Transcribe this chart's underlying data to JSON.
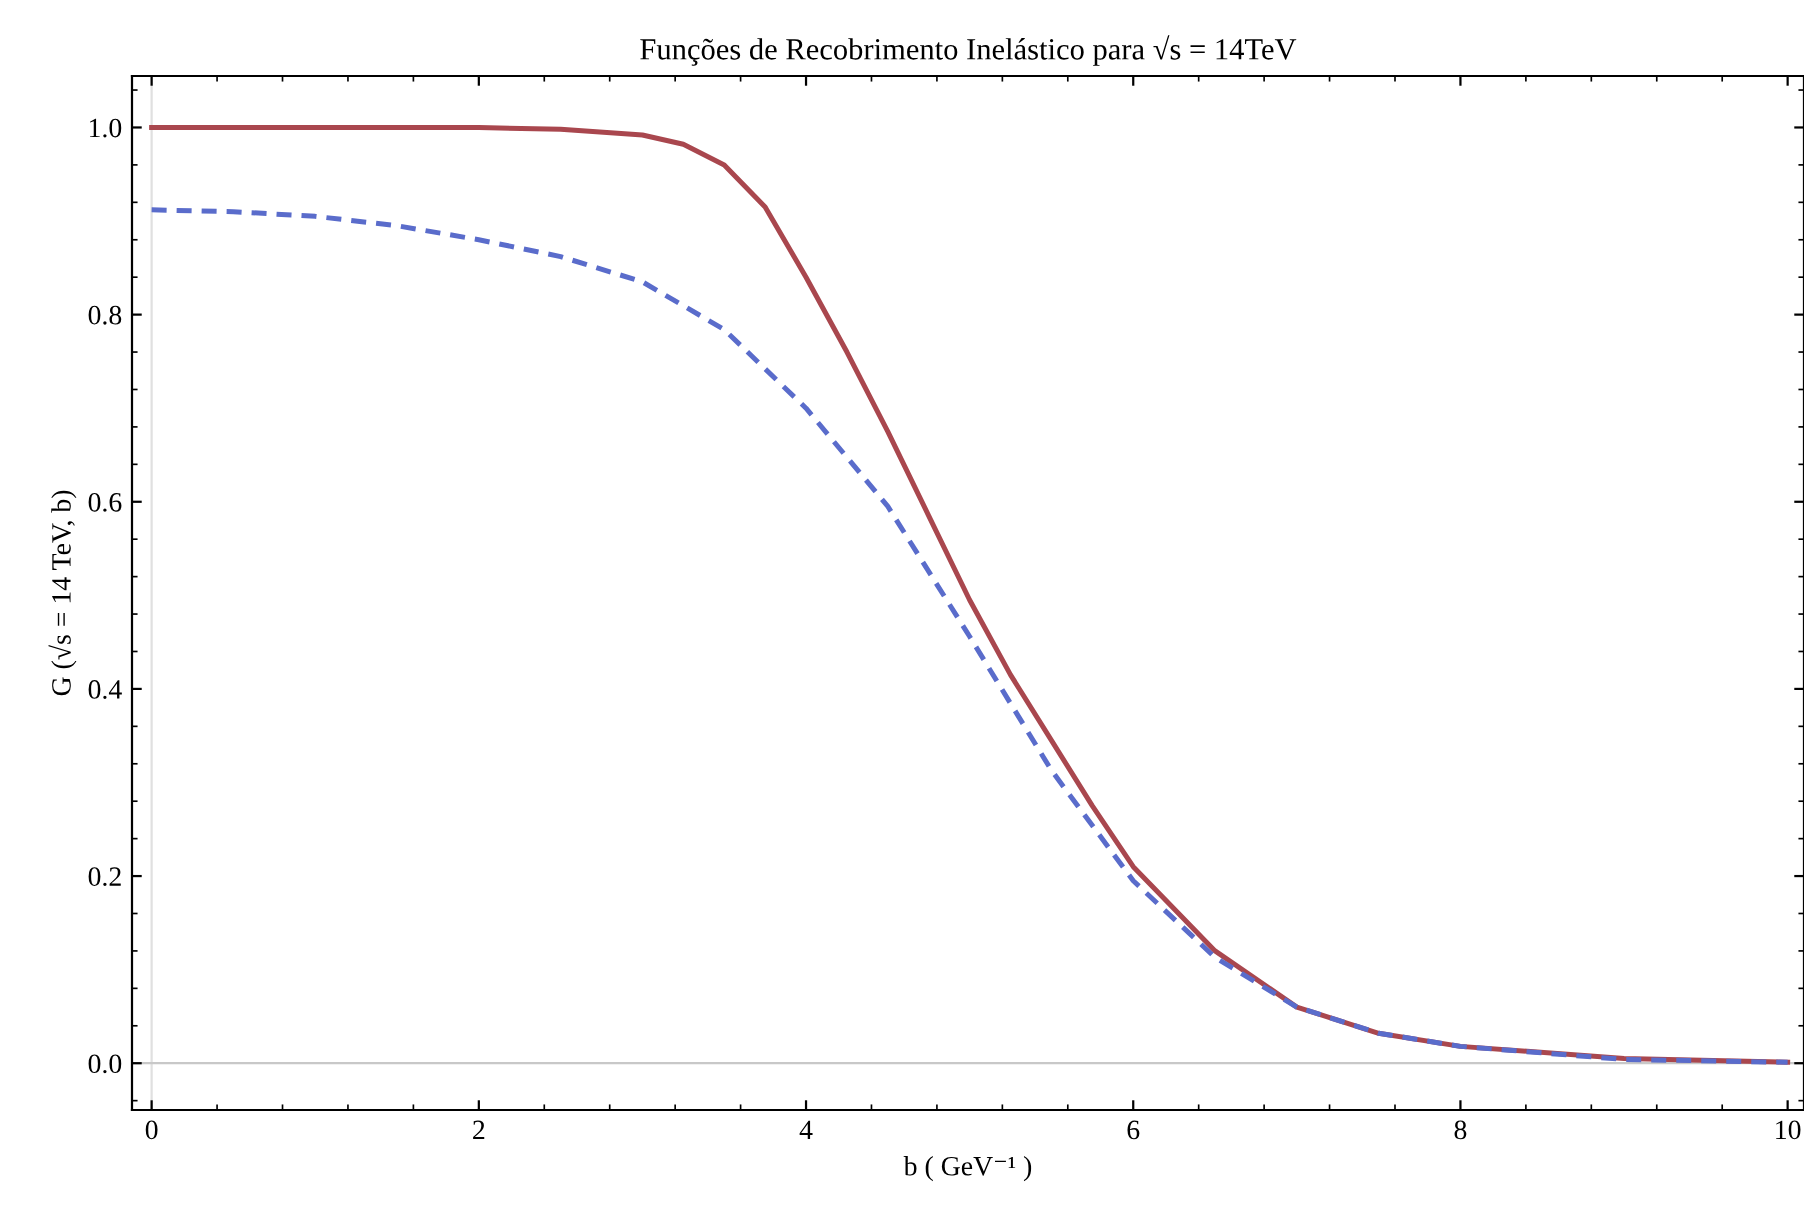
{
  "chart_data": {
    "type": "line",
    "title": "Funções de Recobrimento Inelástico para √s = 14TeV",
    "xlabel": "b ( GeV⁻¹ )",
    "ylabel": "G (√s = 14 TeV, b)",
    "xlim": [
      -0.12,
      10.1
    ],
    "ylim": [
      -0.05,
      1.055
    ],
    "xticks": [
      0,
      2,
      4,
      6,
      8,
      10
    ],
    "yticks": [
      {
        "value": 0,
        "label": "0.0"
      },
      {
        "value": 0.2,
        "label": "0.2"
      },
      {
        "value": 0.4,
        "label": "0.4"
      },
      {
        "value": 0.6,
        "label": "0.6"
      },
      {
        "value": 0.8,
        "label": "0.8"
      },
      {
        "value": 1,
        "label": "1.0"
      }
    ],
    "grid": false,
    "legend": false,
    "ref_lines": [
      {
        "axis": "x",
        "value": 0,
        "color": "#e0e0e0"
      },
      {
        "axis": "y",
        "value": 0,
        "color": "#c8c8c8"
      }
    ],
    "series": [
      {
        "color": "#a9474e",
        "line_style": "solid",
        "x": [
          0,
          1,
          2,
          2.5,
          3,
          3.25,
          3.5,
          3.75,
          4,
          4.25,
          4.5,
          4.75,
          5,
          5.25,
          5.5,
          5.75,
          6,
          6.5,
          7,
          7.5,
          8,
          9,
          10
        ],
        "values": [
          1.0,
          1.0,
          1.0,
          0.998,
          0.992,
          0.982,
          0.96,
          0.915,
          0.84,
          0.76,
          0.675,
          0.585,
          0.495,
          0.415,
          0.345,
          0.275,
          0.21,
          0.12,
          0.06,
          0.032,
          0.018,
          0.005,
          0.001
        ]
      },
      {
        "color": "#5a6ccb",
        "line_style": "dashed",
        "x": [
          0,
          0.5,
          1,
          1.5,
          2,
          2.5,
          3,
          3.5,
          4,
          4.5,
          5,
          5.5,
          6,
          6.5,
          7,
          7.5,
          8,
          9,
          10
        ],
        "values": [
          0.912,
          0.91,
          0.905,
          0.895,
          0.88,
          0.862,
          0.835,
          0.784,
          0.7,
          0.595,
          0.456,
          0.313,
          0.195,
          0.113,
          0.06,
          0.032,
          0.018,
          0.004,
          0.001
        ]
      }
    ]
  }
}
